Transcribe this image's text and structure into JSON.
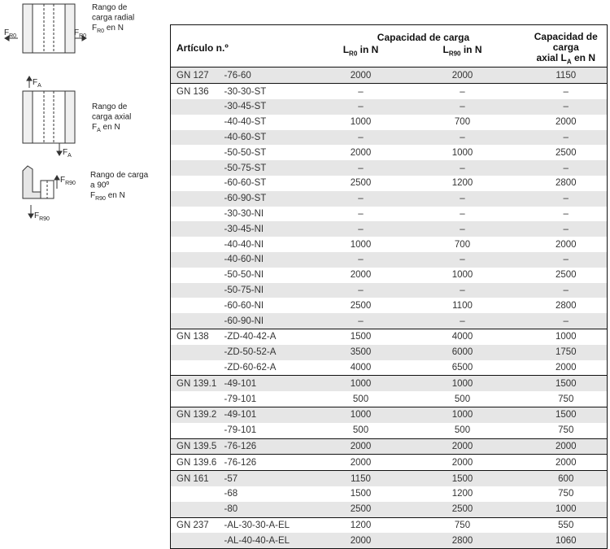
{
  "diagrams": [
    {
      "forces": [
        {
          "sym": "F",
          "sub": "R0"
        },
        {
          "sym": "F",
          "sub": "R0"
        }
      ],
      "lines": [
        "Rango de",
        "carga radial"
      ],
      "unit": {
        "sym": "F",
        "sub": "R0",
        "rest": " en N"
      }
    },
    {
      "forces": [
        {
          "sym": "F",
          "sub": "A"
        },
        {
          "sym": "F",
          "sub": "A"
        }
      ],
      "lines": [
        "Rango de",
        "carga axial"
      ],
      "unit": {
        "sym": "F",
        "sub": "A",
        "rest": " en N"
      }
    },
    {
      "forces": [
        {
          "sym": "F",
          "sub": "R90"
        },
        {
          "sym": "F",
          "sub": "R90"
        }
      ],
      "lines": [
        "Rango de carga",
        "a 90º"
      ],
      "unit": {
        "sym": "F",
        "sub": "R90",
        "rest": " en N"
      }
    }
  ],
  "table": {
    "header": {
      "article": "Artículo n.º",
      "capacity": "Capacidad de carga",
      "r0": {
        "sym": "L",
        "sub": "R0",
        "rest": " in N"
      },
      "r90": {
        "sym": "L",
        "sub": "R90",
        "rest": " in N"
      },
      "axial": {
        "line1": "Capacidad de carga",
        "pre": "axial ",
        "sym": "L",
        "sub": "A",
        "rest": " en N"
      }
    },
    "groups": [
      {
        "name": "GN 127",
        "rows": [
          [
            "-76-60",
            2000,
            2000,
            1150
          ]
        ]
      },
      {
        "name": "GN 136",
        "rows": [
          [
            "-30-30-ST",
            "–",
            "–",
            "–"
          ],
          [
            "-30-45-ST",
            "–",
            "–",
            "–"
          ],
          [
            "-40-40-ST",
            1000,
            700,
            2000
          ],
          [
            "-40-60-ST",
            "–",
            "–",
            "–"
          ],
          [
            "-50-50-ST",
            2000,
            1000,
            2500
          ],
          [
            "-50-75-ST",
            "–",
            "–",
            "–"
          ],
          [
            "-60-60-ST",
            2500,
            1200,
            2800
          ],
          [
            "-60-90-ST",
            "–",
            "–",
            "–"
          ],
          [
            "-30-30-NI",
            "–",
            "–",
            "–"
          ],
          [
            "-30-45-NI",
            "–",
            "–",
            "–"
          ],
          [
            "-40-40-NI",
            1000,
            700,
            2000
          ],
          [
            "-40-60-NI",
            "–",
            "–",
            "–"
          ],
          [
            "-50-50-NI",
            2000,
            1000,
            2500
          ],
          [
            "-50-75-NI",
            "–",
            "–",
            "–"
          ],
          [
            "-60-60-NI",
            2500,
            1100,
            2800
          ],
          [
            "-60-90-NI",
            "–",
            "–",
            "–"
          ]
        ]
      },
      {
        "name": "GN 138",
        "rows": [
          [
            "-ZD-40-42-A",
            1500,
            4000,
            1000
          ],
          [
            "-ZD-50-52-A",
            3500,
            6000,
            1750
          ],
          [
            "-ZD-60-62-A",
            4000,
            6500,
            2000
          ]
        ]
      },
      {
        "name": "GN 139.1",
        "rows": [
          [
            "-49-101",
            1000,
            1000,
            1500
          ],
          [
            "-79-101",
            500,
            500,
            750
          ]
        ]
      },
      {
        "name": "GN 139.2",
        "rows": [
          [
            "-49-101",
            1000,
            1000,
            1500
          ],
          [
            "-79-101",
            500,
            500,
            750
          ]
        ]
      },
      {
        "name": "GN 139.5",
        "rows": [
          [
            "-76-126",
            2000,
            2000,
            2000
          ]
        ]
      },
      {
        "name": "GN 139.6",
        "rows": [
          [
            "-76-126",
            2000,
            2000,
            2000
          ]
        ]
      },
      {
        "name": "GN 161",
        "rows": [
          [
            "-57",
            1150,
            1500,
            600
          ],
          [
            "-68",
            1500,
            1200,
            750
          ],
          [
            "-80",
            2500,
            2500,
            1000
          ]
        ]
      },
      {
        "name": "GN 237",
        "rows": [
          [
            "-AL-30-30-A-EL",
            1200,
            750,
            550
          ],
          [
            "-AL-40-40-A-EL",
            2000,
            2800,
            1060
          ]
        ]
      }
    ]
  }
}
